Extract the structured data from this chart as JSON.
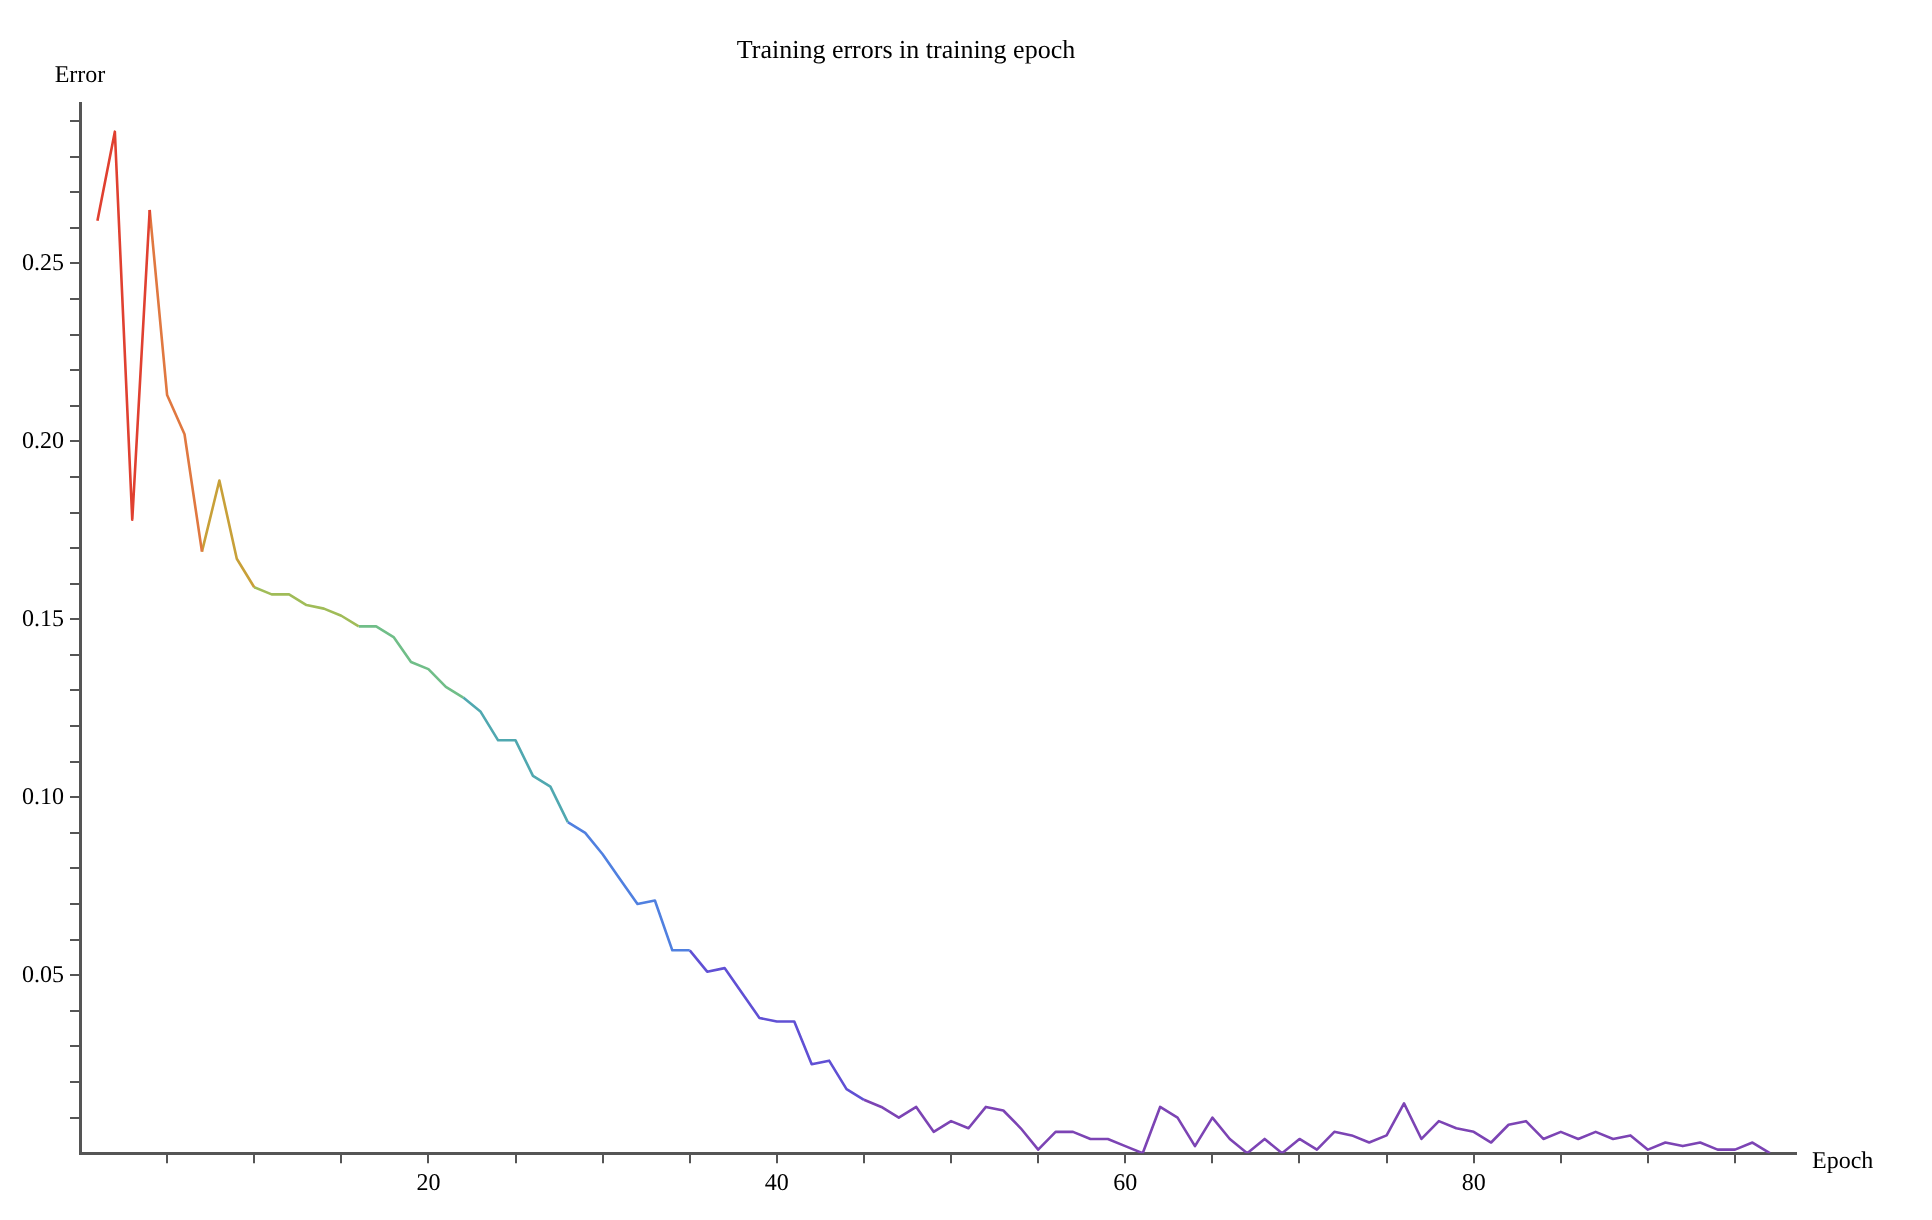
{
  "chart_data": {
    "type": "line",
    "title": "Training errors in training epoch",
    "xlabel": "Epoch",
    "ylabel": "Error",
    "xlim": [
      0,
      98.5
    ],
    "ylim": [
      0,
      0.295
    ],
    "xticks": [
      {
        "value": 5,
        "label": null
      },
      {
        "value": 10,
        "label": null
      },
      {
        "value": 15,
        "label": null
      },
      20,
      {
        "value": 25,
        "label": null
      },
      {
        "value": 30,
        "label": null
      },
      {
        "value": 35,
        "label": null
      },
      40,
      {
        "value": 45,
        "label": null
      },
      {
        "value": 50,
        "label": null
      },
      {
        "value": 55,
        "label": null
      },
      60,
      {
        "value": 65,
        "label": null
      },
      {
        "value": 70,
        "label": null
      },
      {
        "value": 75,
        "label": null
      },
      80,
      {
        "value": 85,
        "label": null
      },
      {
        "value": 90,
        "label": null
      },
      {
        "value": 95,
        "label": null
      }
    ],
    "yticks": [
      {
        "value": 0.01,
        "label": null
      },
      {
        "value": 0.02,
        "label": null
      },
      {
        "value": 0.03,
        "label": null
      },
      {
        "value": 0.04,
        "label": null
      },
      {
        "value": 0.05,
        "label": "0.05"
      },
      {
        "value": 0.06,
        "label": null
      },
      {
        "value": 0.07,
        "label": null
      },
      {
        "value": 0.08,
        "label": null
      },
      {
        "value": 0.09,
        "label": null
      },
      {
        "value": 0.1,
        "label": "0.10"
      },
      {
        "value": 0.11,
        "label": null
      },
      {
        "value": 0.12,
        "label": null
      },
      {
        "value": 0.13,
        "label": null
      },
      {
        "value": 0.14,
        "label": null
      },
      {
        "value": 0.15,
        "label": "0.15"
      },
      {
        "value": 0.16,
        "label": null
      },
      {
        "value": 0.17,
        "label": null
      },
      {
        "value": 0.18,
        "label": null
      },
      {
        "value": 0.19,
        "label": null
      },
      {
        "value": 0.2,
        "label": "0.20"
      },
      {
        "value": 0.21,
        "label": null
      },
      {
        "value": 0.22,
        "label": null
      },
      {
        "value": 0.23,
        "label": null
      },
      {
        "value": 0.24,
        "label": null
      },
      {
        "value": 0.25,
        "label": "0.25"
      },
      {
        "value": 0.26,
        "label": null
      },
      {
        "value": 0.27,
        "label": null
      },
      {
        "value": 0.28,
        "label": null
      },
      {
        "value": 0.29,
        "label": null
      }
    ],
    "grid": false,
    "legend": false,
    "series": [
      {
        "color": "#e04030",
        "x": [
          1,
          2,
          3,
          4
        ],
        "values": [
          0.262,
          0.287,
          0.178,
          0.265
        ]
      },
      {
        "color": "#e07840",
        "x": [
          4,
          5,
          6,
          7
        ],
        "values": [
          0.265,
          0.213,
          0.202,
          0.169
        ]
      },
      {
        "color": "#c8a038",
        "x": [
          7,
          8,
          9,
          10
        ],
        "values": [
          0.169,
          0.189,
          0.167,
          0.159
        ]
      },
      {
        "color": "#a0bc58",
        "x": [
          10,
          11,
          12,
          13,
          14,
          15,
          16
        ],
        "values": [
          0.159,
          0.157,
          0.157,
          0.154,
          0.153,
          0.151,
          0.148
        ]
      },
      {
        "color": "#70be88",
        "x": [
          16,
          17,
          18,
          19,
          20,
          21,
          22
        ],
        "values": [
          0.148,
          0.148,
          0.145,
          0.138,
          0.136,
          0.131,
          0.128
        ]
      },
      {
        "color": "#50a8b0",
        "x": [
          22,
          23,
          24,
          25,
          26,
          27,
          28
        ],
        "values": [
          0.128,
          0.124,
          0.116,
          0.116,
          0.106,
          0.103,
          0.093
        ]
      },
      {
        "color": "#5080e0",
        "x": [
          28,
          29,
          30,
          31,
          32,
          33,
          34,
          35
        ],
        "values": [
          0.093,
          0.09,
          0.084,
          0.077,
          0.07,
          0.071,
          0.057,
          0.057
        ]
      },
      {
        "color": "#6050d4",
        "x": [
          35,
          36,
          37,
          38,
          39,
          40,
          41,
          42,
          43,
          44,
          45
        ],
        "values": [
          0.057,
          0.051,
          0.052,
          0.045,
          0.038,
          0.037,
          0.037,
          0.025,
          0.026,
          0.018,
          0.015
        ]
      },
      {
        "color": "#7c44b4",
        "x": [
          45,
          46,
          47,
          48,
          49,
          50,
          51,
          52,
          53,
          54,
          55,
          56,
          57,
          58,
          59,
          60,
          61,
          62,
          63,
          64,
          65,
          66,
          67,
          68,
          69,
          70,
          71,
          72,
          73,
          74,
          75,
          76,
          77,
          78,
          79,
          80,
          81,
          82,
          83,
          84,
          85,
          86,
          87,
          88,
          89,
          90,
          91,
          92,
          93,
          94,
          95,
          96,
          97
        ],
        "values": [
          0.015,
          0.013,
          0.01,
          0.013,
          0.006,
          0.009,
          0.007,
          0.013,
          0.012,
          0.007,
          0.001,
          0.006,
          0.006,
          0.004,
          0.004,
          0.002,
          0.0,
          0.013,
          0.01,
          0.002,
          0.01,
          0.004,
          0.0,
          0.004,
          0.0,
          0.004,
          0.001,
          0.006,
          0.005,
          0.003,
          0.005,
          0.014,
          0.004,
          0.009,
          0.007,
          0.006,
          0.003,
          0.008,
          0.009,
          0.004,
          0.006,
          0.004,
          0.006,
          0.004,
          0.005,
          0.001,
          0.003,
          0.002,
          0.003,
          0.001,
          0.001,
          0.003,
          0.0
        ]
      }
    ]
  }
}
